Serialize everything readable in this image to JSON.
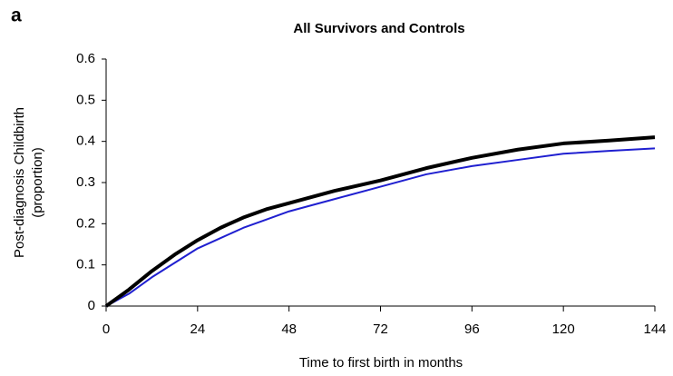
{
  "chart_data": {
    "type": "line",
    "panel_label": "a",
    "title": "All Survivors and Controls",
    "xlabel": "Time to first birth in months",
    "ylabel": [
      "Post-diagnosis Childbirth",
      "(proportion)"
    ],
    "x": [
      0,
      6,
      12,
      18,
      24,
      30,
      36,
      42,
      48,
      60,
      72,
      84,
      96,
      108,
      120,
      132,
      144
    ],
    "series": [
      {
        "color": "#000000",
        "values": [
          0,
          0.04,
          0.085,
          0.125,
          0.16,
          0.19,
          0.215,
          0.235,
          0.25,
          0.28,
          0.305,
          0.335,
          0.36,
          0.38,
          0.395,
          0.402,
          0.41
        ]
      },
      {
        "color": "#1f1fd0",
        "values": [
          0,
          0.03,
          0.07,
          0.105,
          0.14,
          0.165,
          0.19,
          0.21,
          0.23,
          0.26,
          0.29,
          0.32,
          0.34,
          0.355,
          0.37,
          0.377,
          0.383
        ]
      }
    ],
    "xlim": [
      0,
      144
    ],
    "xticks": [
      0,
      24,
      48,
      72,
      96,
      120,
      144
    ],
    "ylim": [
      0,
      0.6
    ],
    "yticks": [
      0,
      0.1,
      0.2,
      0.3,
      0.4,
      0.5,
      0.6
    ],
    "grid": false
  }
}
